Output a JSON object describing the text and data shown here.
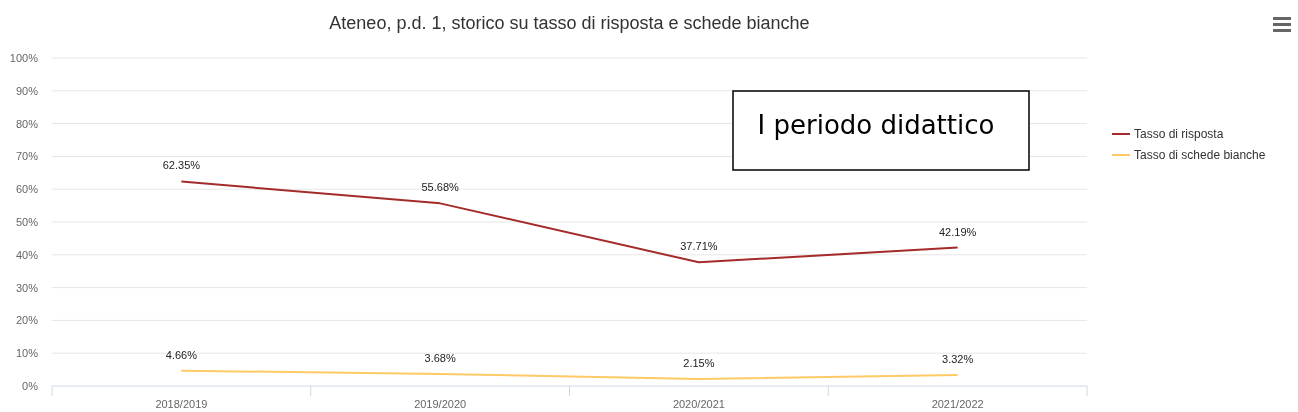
{
  "chart_data": {
    "type": "line",
    "title": "Ateneo, p.d. 1, storico su tasso di risposta e schede bianche",
    "categories": [
      "2018/2019",
      "2019/2020",
      "2020/2021",
      "2021/2022"
    ],
    "series": [
      {
        "name": "Tasso di risposta",
        "color": "#a52a2a",
        "values": [
          62.35,
          55.68,
          37.71,
          42.19
        ],
        "value_labels": [
          "62.35%",
          "55.68%",
          "37.71%",
          "42.19%"
        ]
      },
      {
        "name": "Tasso di schede bianche",
        "color": "#ffc966",
        "values": [
          4.66,
          3.68,
          2.15,
          3.32
        ],
        "value_labels": [
          "4.66%",
          "3.68%",
          "2.15%",
          "3.32%"
        ]
      }
    ],
    "ylim": [
      0,
      100
    ],
    "yticks": [
      {
        "value": 0,
        "label": "0%"
      },
      {
        "value": 10,
        "label": "10%"
      },
      {
        "value": 20,
        "label": "20%"
      },
      {
        "value": 30,
        "label": "30%"
      },
      {
        "value": 40,
        "label": "40%"
      },
      {
        "value": 50,
        "label": "50%"
      },
      {
        "value": 60,
        "label": "60%"
      },
      {
        "value": 70,
        "label": "70%"
      },
      {
        "value": 80,
        "label": "80%"
      },
      {
        "value": 90,
        "label": "90%"
      },
      {
        "value": 100,
        "label": "100%"
      }
    ],
    "grid": "y",
    "legend": "right",
    "marker": "none",
    "line_style": "solid",
    "annotations": [
      "I periodo didattico"
    ]
  }
}
